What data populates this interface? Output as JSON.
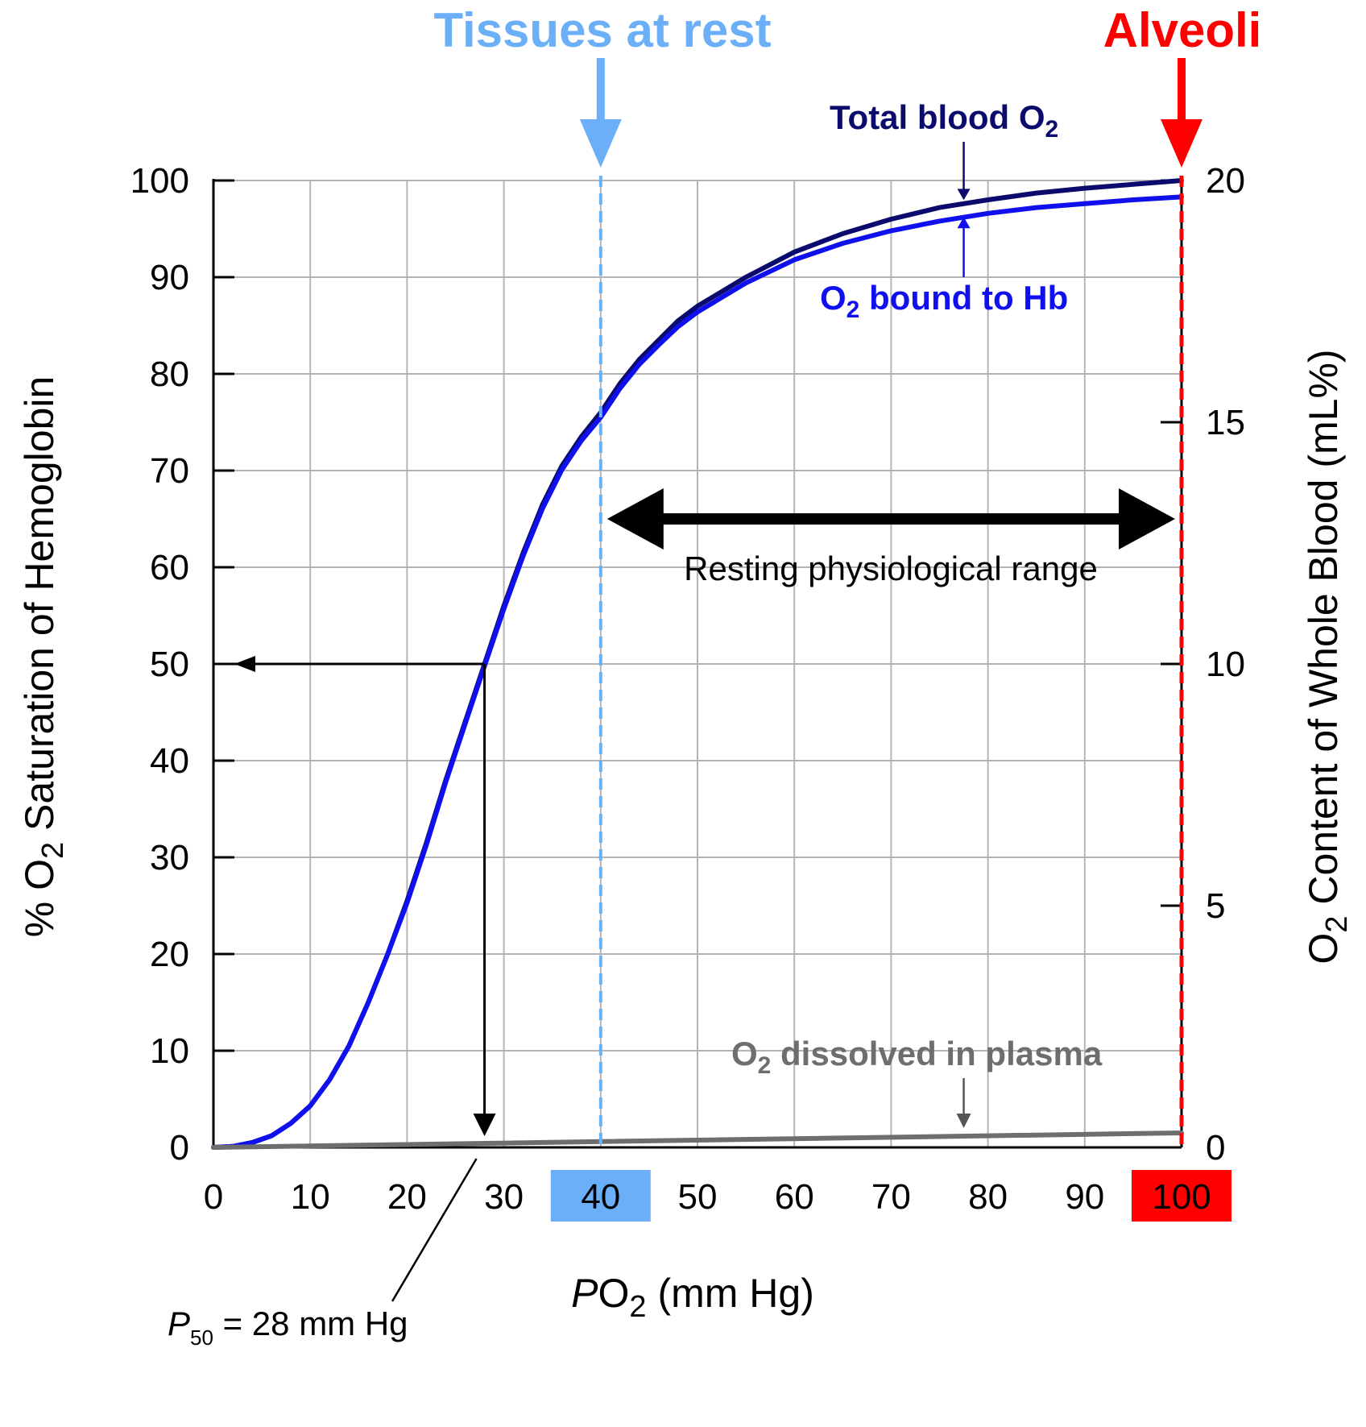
{
  "chart_data": {
    "type": "line",
    "x_axis": {
      "label_prefix": "P",
      "label_sub_o": "O",
      "label_sub": "2",
      "label_suffix": " (mm Hg)",
      "range": [
        0,
        100
      ],
      "ticks": [
        "0",
        "10",
        "20",
        "30",
        "40",
        "50",
        "60",
        "70",
        "80",
        "90",
        "100"
      ]
    },
    "y_left": {
      "label_pre": "% O",
      "label_sub": "2",
      "label_post": " Saturation of Hemoglobin",
      "range": [
        0,
        100
      ],
      "ticks": [
        "0",
        "10",
        "20",
        "30",
        "40",
        "50",
        "60",
        "70",
        "80",
        "90",
        "100"
      ]
    },
    "y_right": {
      "label_pre": "O",
      "label_sub": "2",
      "label_post": " Content of Whole Blood (mL%)",
      "range": [
        0,
        20
      ],
      "ticks": [
        "0",
        "5",
        "10",
        "15",
        "20"
      ]
    },
    "grid": true,
    "series": [
      {
        "name_pre": "Total blood O",
        "name_sub": "2",
        "color": "#0b0b6e",
        "points": [
          [
            0,
            0
          ],
          [
            2,
            0.1
          ],
          [
            4,
            0.5
          ],
          [
            6,
            1.2
          ],
          [
            8,
            2.5
          ],
          [
            10,
            4.3
          ],
          [
            12,
            7
          ],
          [
            14,
            10.5
          ],
          [
            16,
            15
          ],
          [
            18,
            20
          ],
          [
            20,
            25.5
          ],
          [
            22,
            31.5
          ],
          [
            24,
            38
          ],
          [
            26,
            44
          ],
          [
            28,
            50
          ],
          [
            30,
            56
          ],
          [
            32,
            61.5
          ],
          [
            34,
            66.5
          ],
          [
            36,
            70.5
          ],
          [
            38,
            73.5
          ],
          [
            40,
            76
          ],
          [
            42,
            79
          ],
          [
            44,
            81.5
          ],
          [
            46,
            83.5
          ],
          [
            48,
            85.5
          ],
          [
            50,
            87
          ],
          [
            55,
            90
          ],
          [
            60,
            92.6
          ],
          [
            65,
            94.5
          ],
          [
            70,
            96
          ],
          [
            75,
            97.2
          ],
          [
            80,
            98
          ],
          [
            85,
            98.7
          ],
          [
            90,
            99.2
          ],
          [
            95,
            99.6
          ],
          [
            100,
            100
          ]
        ]
      },
      {
        "name_pre": "O",
        "name_sub": "2",
        "name_post": " bound to Hb",
        "color": "#1010ee",
        "points": [
          [
            0,
            0
          ],
          [
            2,
            0.1
          ],
          [
            4,
            0.5
          ],
          [
            6,
            1.2
          ],
          [
            8,
            2.5
          ],
          [
            10,
            4.3
          ],
          [
            12,
            7
          ],
          [
            14,
            10.5
          ],
          [
            16,
            15
          ],
          [
            18,
            20
          ],
          [
            20,
            25.3
          ],
          [
            22,
            31.3
          ],
          [
            24,
            37.8
          ],
          [
            26,
            43.8
          ],
          [
            28,
            49.8
          ],
          [
            30,
            55.7
          ],
          [
            32,
            61.2
          ],
          [
            34,
            66.1
          ],
          [
            36,
            70.1
          ],
          [
            38,
            73.1
          ],
          [
            40,
            75.5
          ],
          [
            42,
            78.5
          ],
          [
            44,
            81
          ],
          [
            46,
            83
          ],
          [
            48,
            84.9
          ],
          [
            50,
            86.4
          ],
          [
            55,
            89.4
          ],
          [
            60,
            91.8
          ],
          [
            65,
            93.5
          ],
          [
            70,
            94.8
          ],
          [
            75,
            95.8
          ],
          [
            80,
            96.6
          ],
          [
            85,
            97.2
          ],
          [
            90,
            97.6
          ],
          [
            95,
            98
          ],
          [
            100,
            98.3
          ]
        ]
      },
      {
        "name_pre": "O",
        "name_sub": "2",
        "name_post": " dissolved in plasma",
        "color": "#6e6e6e",
        "points": [
          [
            0,
            0
          ],
          [
            100,
            1.5
          ]
        ]
      }
    ],
    "markers": [
      {
        "label": "Tissues at rest",
        "x": 40,
        "color": "#6aaff7",
        "tick_label": "40"
      },
      {
        "label": "Alveoli",
        "x": 100,
        "color": "#ff0000",
        "tick_label": "100"
      }
    ],
    "range_annotation": {
      "label": "Resting physiological range",
      "from": 40,
      "to": 100,
      "y": 65
    },
    "p50": {
      "x": 28,
      "y": 50,
      "label_p": "P",
      "label_sub": "50",
      "label_rest": " = 28 mm Hg"
    }
  }
}
